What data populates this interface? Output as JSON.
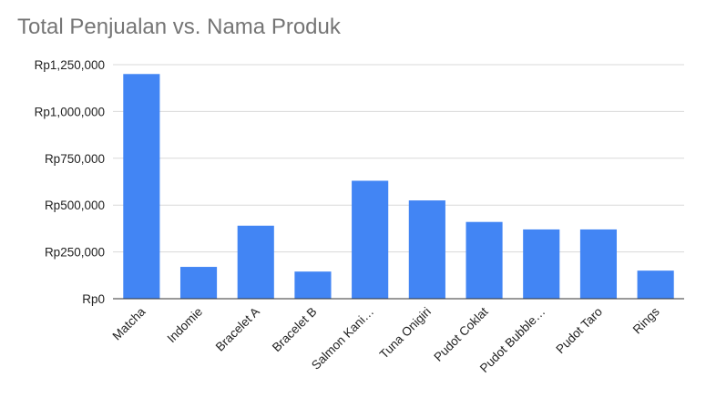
{
  "chart_data": {
    "type": "bar",
    "title": "Total Penjualan vs. Nama Produk",
    "xlabel": "",
    "ylabel": "",
    "categories": [
      "Matcha",
      "Indomie",
      "Bracelet A",
      "Bracelet B",
      "Salmon Kani…",
      "Tuna Onigiri",
      "Pudot Coklat",
      "Pudot Bubble…",
      "Pudot Taro",
      "Rings"
    ],
    "values": [
      1200000,
      170000,
      390000,
      145000,
      630000,
      525000,
      410000,
      370000,
      370000,
      150000
    ],
    "ylim": [
      0,
      1250000
    ],
    "yticks": [
      0,
      250000,
      500000,
      750000,
      1000000,
      1250000
    ],
    "ytick_labels": [
      "Rp0",
      "Rp250,000",
      "Rp500,000",
      "Rp750,000",
      "Rp1,000,000",
      "Rp1,250,000"
    ],
    "grid": true,
    "legend": "none",
    "colors": {
      "bar": "#4285f4",
      "grid": "#d9d9d9",
      "axis": "#333333",
      "title": "#757575",
      "text": "#222222"
    }
  }
}
